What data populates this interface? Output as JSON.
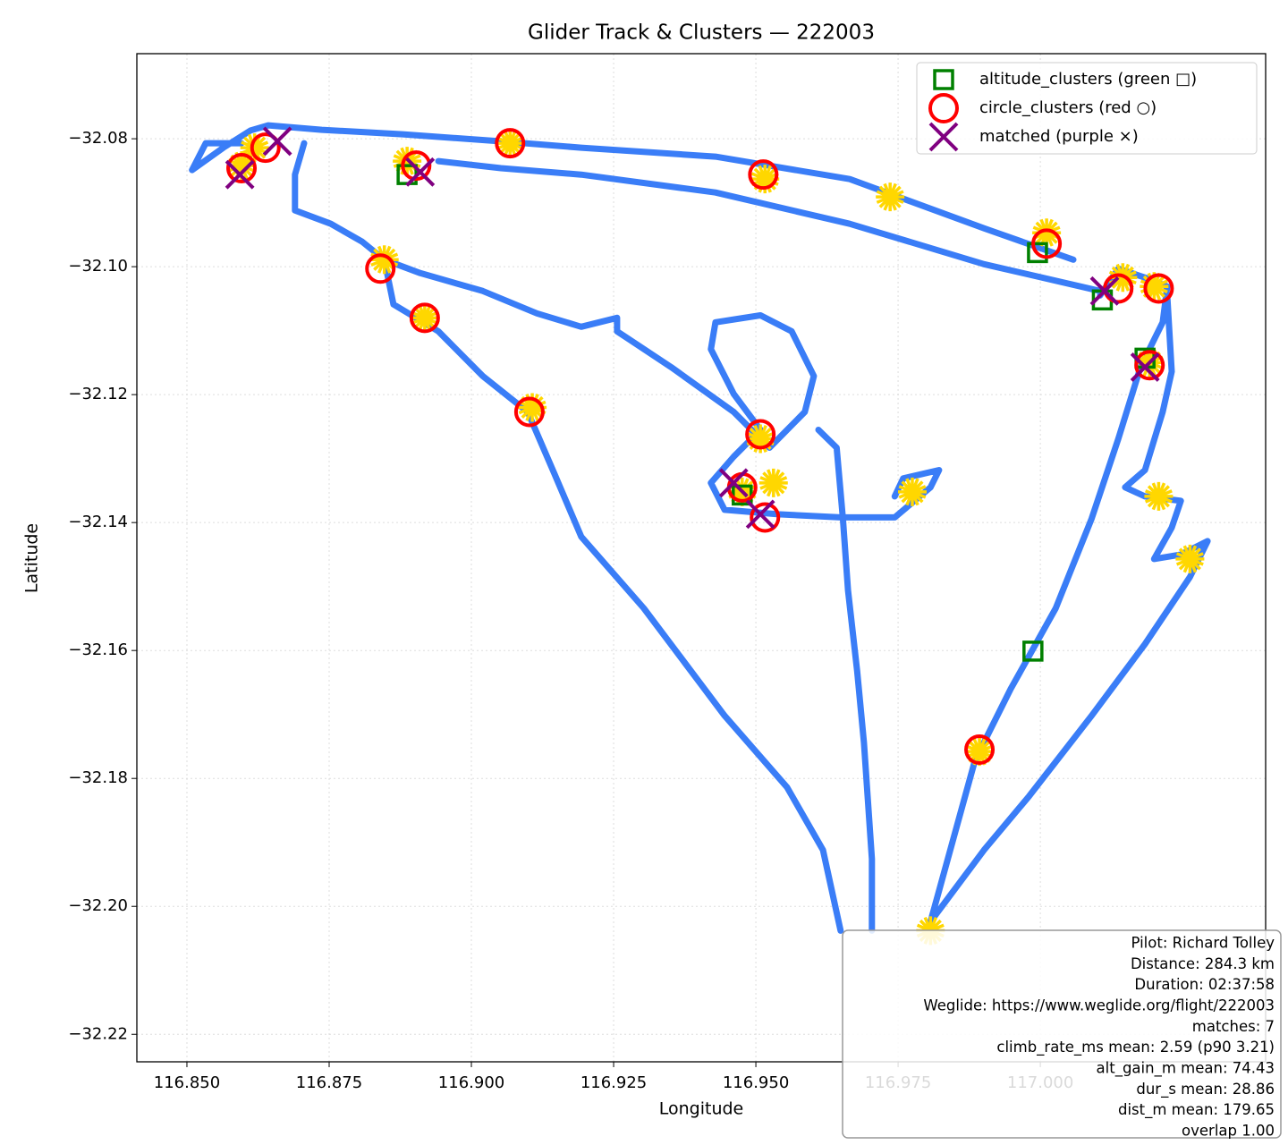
{
  "chart_data": {
    "type": "scatter",
    "title": "Glider Track & Clusters — 222003",
    "x_label": "Longitude",
    "y_label": "Latitude",
    "xlim": [
      116.8412,
      117.0396
    ],
    "ylim": [
      -32.2243,
      -32.0667
    ],
    "xticks": [
      {
        "value": 116.85,
        "label": "116.850"
      },
      {
        "value": 116.875,
        "label": "116.875"
      },
      {
        "value": 116.9,
        "label": "116.900"
      },
      {
        "value": 116.925,
        "label": "116.925"
      },
      {
        "value": 116.95,
        "label": "116.950"
      },
      {
        "value": 116.975,
        "label": "116.975"
      },
      {
        "value": 117.0,
        "label": "117.000"
      }
    ],
    "yticks": [
      {
        "value": -32.08,
        "label": "−32.08"
      },
      {
        "value": -32.1,
        "label": "−32.10"
      },
      {
        "value": -32.12,
        "label": "−32.12"
      },
      {
        "value": -32.14,
        "label": "−32.14"
      },
      {
        "value": -32.16,
        "label": "−32.16"
      },
      {
        "value": -32.18,
        "label": "−32.18"
      },
      {
        "value": -32.2,
        "label": "−32.20"
      },
      {
        "value": -32.22,
        "label": "−32.22"
      }
    ],
    "grid": true,
    "legend_position": "upper right",
    "track": {
      "color": "#3a7df7",
      "x": [
        116.9807,
        116.9885,
        116.9948,
        117.0027,
        117.009,
        117.0137,
        117.0176,
        117.0215,
        117.0223,
        117.0184,
        117.0137,
        117.0105,
        null,
        117.0105,
        116.9901,
        116.9665,
        116.9429,
        116.9193,
        116.9052,
        116.8942,
        null,
        117.0058,
        116.9901,
        116.9665,
        116.9429,
        116.9193,
        116.9052,
        116.8879,
        116.8737,
        116.8643,
        116.8612,
        116.8564,
        116.8509,
        116.8533,
        116.8596,
        null,
        116.8706,
        116.869,
        116.869,
        116.8753,
        116.8808,
        116.8847,
        116.891,
        116.902,
        116.9115,
        116.9193,
        116.9256,
        116.9256,
        116.9351,
        116.9461,
        116.9524,
        116.9586,
        116.9602,
        116.9563,
        116.9508,
        116.9429,
        116.9421,
        116.9461,
        116.9508,
        116.9461,
        116.9421,
        116.9445,
        116.9539,
        116.9649,
        116.9744,
        116.9807,
        116.9822,
        116.9759,
        116.9744,
        null,
        116.961,
        116.9642,
        116.9653,
        116.9662,
        116.9678,
        116.969,
        116.9704,
        116.9704,
        null,
        116.8847,
        116.8863,
        116.8942,
        116.902,
        116.9099,
        116.9146,
        116.9193,
        116.9303,
        116.9445,
        116.9555,
        116.9618,
        116.9649,
        null,
        116.9807,
        116.9901,
        116.998,
        117.009,
        117.0184,
        117.0263,
        117.0294,
        117.0247,
        117.02,
        117.0231,
        117.0247,
        117.0184,
        117.0149,
        117.0184,
        117.0215,
        117.0231,
        117.0223
      ],
      "y": [
        -32.2024,
        -32.1772,
        -32.166,
        -32.1534,
        -32.1394,
        -32.1269,
        -32.1157,
        -32.1087,
        -32.1031,
        -32.1017,
        -32.1003,
        -32.1045,
        null,
        -32.1038,
        -32.0996,
        -32.0933,
        -32.0884,
        -32.0856,
        -32.0846,
        -32.0835,
        null,
        -32.0989,
        -32.094,
        -32.0863,
        -32.0828,
        -32.0814,
        -32.0804,
        -32.0793,
        -32.0786,
        -32.0779,
        -32.0787,
        -32.0814,
        -32.0849,
        -32.0807,
        -32.0807,
        null,
        -32.0807,
        -32.0856,
        -32.0912,
        -32.0933,
        -32.0961,
        -32.0989,
        -32.101,
        -32.1038,
        -32.1073,
        -32.1094,
        -32.108,
        -32.1101,
        -32.1157,
        -32.1227,
        -32.1283,
        -32.1227,
        -32.1171,
        -32.1101,
        -32.1076,
        -32.1087,
        -32.1129,
        -32.1199,
        -32.1255,
        -32.1297,
        -32.1338,
        -32.138,
        -32.1387,
        -32.1392,
        -32.1392,
        -32.1345,
        -32.1318,
        -32.1331,
        -32.1359,
        null,
        -32.1255,
        -32.1283,
        -32.1394,
        -32.1506,
        -32.1632,
        -32.1744,
        -32.1926,
        -32.2038,
        null,
        -32.0989,
        -32.1059,
        -32.1101,
        -32.1171,
        -32.1227,
        -32.1324,
        -32.1422,
        -32.1534,
        -32.1702,
        -32.1814,
        -32.1912,
        -32.2038,
        null,
        -32.2024,
        -32.1912,
        -32.1828,
        -32.1702,
        -32.159,
        -32.1485,
        -32.1429,
        -32.145,
        -32.1457,
        -32.1408,
        -32.1366,
        -32.1359,
        -32.1345,
        -32.1318,
        -32.1227,
        -32.1164,
        -32.1045
      ]
    },
    "climb": {
      "color": "#ffd700",
      "x": [
        116.8619,
        116.8596,
        116.8887,
        116.8847,
        116.8918,
        116.9107,
        116.9068,
        116.9516,
        116.9736,
        117.0011,
        117.0145,
        117.02,
        117.0192,
        116.9508,
        116.9531,
        116.9476,
        116.9775,
        116.9893,
        116.9807,
        117.0263,
        117.0208
      ],
      "y": [
        -32.0814,
        -32.0842,
        -32.0835,
        -32.0989,
        -32.108,
        -32.122,
        -32.0807,
        -32.0863,
        -32.0891,
        -32.0947,
        -32.1017,
        -32.1031,
        -32.115,
        -32.1269,
        -32.1338,
        -32.1352,
        -32.1352,
        -32.1758,
        -32.2038,
        -32.1457,
        -32.1359
      ]
    },
    "series": [
      {
        "name": "altitude_clusters (green □)",
        "color": "#008000",
        "marker": "square",
        "x": [
          116.8887,
          116.9995,
          117.0109,
          117.0184,
          116.9987,
          116.9476
        ],
        "y": [
          -32.0856,
          -32.0978,
          -32.1052,
          -32.1143,
          -32.1601,
          -32.1357
        ]
      },
      {
        "name": "circle_clusters (red ○)",
        "color": "#ff0000",
        "marker": "circle",
        "x": [
          116.8596,
          116.8638,
          116.8903,
          116.884,
          116.8918,
          116.9102,
          116.9068,
          116.9513,
          117.0011,
          117.0137,
          117.0208,
          117.0192,
          116.9508,
          116.9516,
          116.9893,
          116.9476
        ],
        "y": [
          -32.0846,
          -32.0814,
          -32.0842,
          -32.1003,
          -32.108,
          -32.1227,
          -32.0807,
          -32.0856,
          -32.0964,
          -32.1034,
          -32.1034,
          -32.1154,
          -32.1262,
          -32.1392,
          -32.1755,
          -32.1345
        ]
      },
      {
        "name": "matched (purple ×)",
        "color": "#800080",
        "marker": "x",
        "x": [
          116.8593,
          116.8659,
          116.891,
          117.0113,
          117.0184,
          116.9461,
          116.9508
        ],
        "y": [
          -32.0856,
          -32.0804,
          -32.0852,
          -32.1038,
          -32.1157,
          -32.1338,
          -32.1387
        ]
      }
    ],
    "info_box": [
      "Pilot: Richard Tolley",
      "Distance: 284.3 km",
      "Duration: 02:37:58",
      "Weglide: https://www.weglide.org/flight/222003",
      "matches: 7",
      "climb_rate_ms mean: 2.59 (p90 3.21)",
      "alt_gain_m mean: 74.43",
      "dur_s mean: 28.86",
      "dist_m mean: 179.65",
      "overlap 1.00"
    ]
  }
}
